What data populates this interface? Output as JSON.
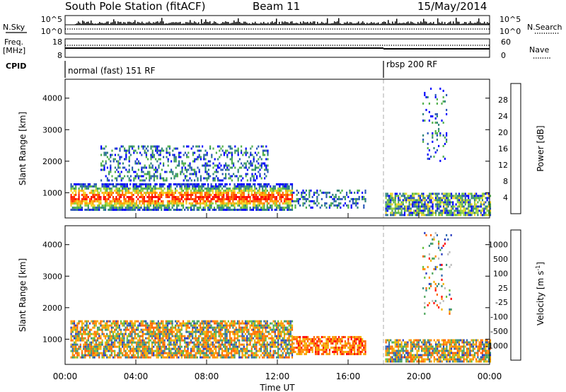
{
  "header": {
    "station": "South Pole Station (fitACF)",
    "beam": "Beam 11",
    "date": "15/May/2014"
  },
  "top_panels": {
    "nsky_label": "N.Sky",
    "nsearch_label": "N.Search",
    "nsky_ticks": [
      "10^5",
      "10^0"
    ],
    "nsearch_ticks": [
      "10^5",
      "10^0"
    ],
    "freq_label": "Freq.",
    "freq_unit": "[MHz]",
    "freq_ticks": [
      "18",
      "8"
    ],
    "nave_label": "Nave",
    "nave_ticks": [
      "60",
      "0"
    ],
    "cpid_label": "CPID",
    "cpid_segments": [
      {
        "label": "normal (fast) 151 RF",
        "start_hour": 0,
        "end_hour": 18.0
      },
      {
        "label": "rbsp 200 RF",
        "start_hour": 18.0,
        "end_hour": 24
      }
    ]
  },
  "chart_data": [
    {
      "type": "heatmap",
      "name": "power",
      "ylabel": "Slant Range [km]",
      "xlabel": "",
      "xlim": [
        0,
        24
      ],
      "ylim": [
        200,
        4600
      ],
      "yticks": [
        1000,
        2000,
        3000,
        4000
      ],
      "colorbar": {
        "label": "Power [dB]",
        "ticks": [
          "28",
          "24",
          "20",
          "16",
          "12",
          "8",
          "4"
        ],
        "colors": [
          "#0000ff",
          "#2a56b8",
          "#31877a",
          "#52b04c",
          "#9ad33a",
          "#f2d427",
          "#ffa500",
          "#ff6a00",
          "#ff2a00",
          "#ff0000"
        ]
      },
      "echo_regions": [
        {
          "start_hour": 0.3,
          "end_hour": 12.8,
          "range_min_km": 450,
          "range_max_km": 1300,
          "level": "high"
        },
        {
          "start_hour": 2.0,
          "end_hour": 11.5,
          "range_min_km": 1400,
          "range_max_km": 2500,
          "level": "low"
        },
        {
          "start_hour": 12.8,
          "end_hour": 17.0,
          "range_min_km": 500,
          "range_max_km": 1100,
          "level": "low"
        },
        {
          "start_hour": 18.1,
          "end_hour": 24,
          "range_min_km": 300,
          "range_max_km": 1000,
          "level": "mid"
        },
        {
          "start_hour": 20.2,
          "end_hour": 21.6,
          "range_min_km": 2000,
          "range_max_km": 4400,
          "level": "sparse"
        }
      ]
    },
    {
      "type": "heatmap",
      "name": "velocity",
      "ylabel": "Slant Range [km]",
      "xlabel": "Time UT",
      "xlim": [
        0,
        24
      ],
      "ylim": [
        200,
        4600
      ],
      "yticks": [
        1000,
        2000,
        3000,
        4000
      ],
      "xticks": [
        "00:00",
        "04:00",
        "08:00",
        "12:00",
        "16:00",
        "20:00",
        "00:00"
      ],
      "colorbar": {
        "label": "Velocity [m s^-1]",
        "ticks": [
          "1000",
          "500",
          "100",
          "25",
          "-25",
          "-100",
          "-500",
          "-1000"
        ],
        "colors": [
          "#2a3cc0",
          "#2f68b0",
          "#3b8f7d",
          "#4ca65a",
          "#66c23a",
          "#bdbdbd",
          "#f2b400",
          "#ff8c00",
          "#ff6400",
          "#ff0000"
        ]
      },
      "echo_regions": [
        {
          "start_hour": 0.3,
          "end_hour": 12.8,
          "range_min_km": 450,
          "range_max_km": 1600,
          "level": "mixed"
        },
        {
          "start_hour": 12.8,
          "end_hour": 17.0,
          "range_min_km": 500,
          "range_max_km": 1100,
          "level": "negative"
        },
        {
          "start_hour": 18.1,
          "end_hour": 24,
          "range_min_km": 300,
          "range_max_km": 1000,
          "level": "mixed"
        },
        {
          "start_hour": 20.2,
          "end_hour": 21.8,
          "range_min_km": 1800,
          "range_max_km": 4400,
          "level": "sparse"
        }
      ]
    }
  ]
}
